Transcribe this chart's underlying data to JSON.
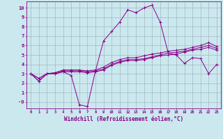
{
  "xlabel": "Windchill (Refroidissement éolien,°C)",
  "bg_color": "#cbe8ee",
  "line_color": "#880088",
  "grid_color": "#a0b8c0",
  "xlim": [
    -0.5,
    23.5
  ],
  "ylim": [
    -0.7,
    10.7
  ],
  "yticks": [
    0,
    1,
    2,
    3,
    4,
    5,
    6,
    7,
    8,
    9,
    10
  ],
  "ytick_labels": [
    "-0",
    "1",
    "2",
    "3",
    "4",
    "5",
    "6",
    "7",
    "8",
    "9",
    "10"
  ],
  "xticks": [
    0,
    1,
    2,
    3,
    4,
    5,
    6,
    7,
    8,
    9,
    10,
    11,
    12,
    13,
    14,
    15,
    16,
    17,
    18,
    19,
    20,
    21,
    22,
    23
  ],
  "series": [
    [
      3.0,
      2.2,
      3.0,
      3.0,
      3.2,
      3.2,
      3.2,
      3.1,
      3.2,
      3.4,
      3.9,
      4.2,
      4.4,
      4.4,
      4.5,
      4.7,
      4.9,
      5.0,
      5.1,
      5.3,
      5.5,
      5.6,
      5.8,
      5.5
    ],
    [
      3.0,
      2.5,
      3.0,
      3.1,
      3.3,
      3.3,
      3.3,
      3.2,
      3.3,
      3.5,
      4.0,
      4.3,
      4.5,
      4.5,
      4.6,
      4.8,
      5.0,
      5.2,
      5.3,
      5.4,
      5.6,
      5.8,
      6.0,
      5.7
    ],
    [
      3.0,
      2.5,
      3.0,
      3.1,
      3.4,
      3.4,
      3.4,
      3.3,
      3.4,
      3.7,
      4.2,
      4.5,
      4.7,
      4.7,
      4.9,
      5.1,
      5.2,
      5.4,
      5.5,
      5.6,
      5.8,
      6.0,
      6.3,
      5.9
    ],
    [
      3.0,
      2.2,
      3.0,
      3.0,
      3.2,
      2.8,
      -0.3,
      -0.5,
      3.3,
      6.5,
      7.5,
      8.5,
      9.8,
      9.5,
      10.0,
      10.3,
      8.5,
      5.2,
      5.0,
      4.1,
      4.7,
      4.6,
      3.0,
      4.0
    ]
  ]
}
